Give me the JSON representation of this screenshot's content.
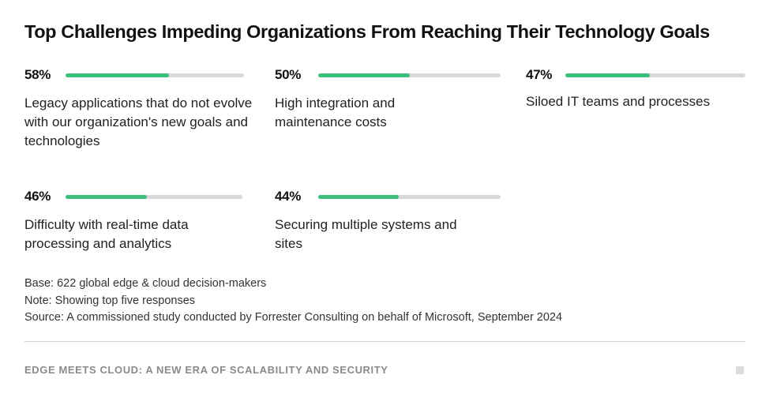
{
  "chart_data": {
    "type": "bar",
    "title": "Top Challenges Impeding Organizations From Reaching Their Technology Goals",
    "unit": "%",
    "xlim": [
      0,
      100
    ],
    "categories": [
      "Legacy applications that do not evolve with our organization's new goals and technologies",
      "High integration and maintenance costs",
      "Siloed IT teams and processes",
      "Difficulty with real-time data processing and analytics",
      "Securing multiple systems and sites"
    ],
    "values": [
      58,
      50,
      47,
      46,
      44
    ],
    "labels": [
      "58%",
      "50%",
      "47%",
      "46%",
      "44%"
    ],
    "colors": {
      "fill": "#3cbf7a",
      "track": "#d9d9d9"
    }
  },
  "notes": {
    "base": "Base: 622 global edge & cloud decision-makers",
    "note": "Note: Showing top five responses",
    "source": "Source: A commissioned study conducted by Forrester Consulting on behalf of Microsoft, September 2024"
  },
  "footer": {
    "text": "EDGE MEETS CLOUD: A NEW ERA OF SCALABILITY AND SECURITY"
  }
}
